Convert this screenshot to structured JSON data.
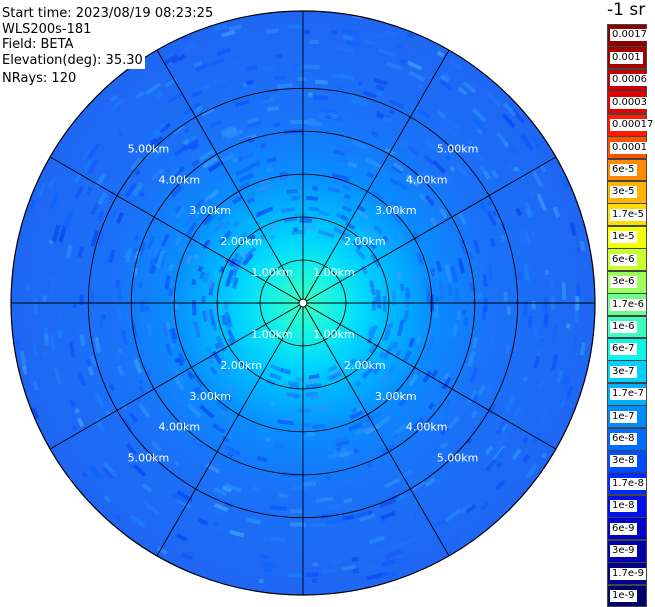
{
  "info": {
    "start_time": "Start time: 2023/08/19 08:23:25",
    "instrument": "WLS200s-181",
    "field": "Field: BETA",
    "elevation": "Elevation(deg): 35.30",
    "nrays": "NRays: 120"
  },
  "colorbar": {
    "unit": "-1 sr",
    "levels": [
      {
        "label": "0.0017",
        "color": "#8b0000"
      },
      {
        "label": "0.001",
        "color": "#a40000"
      },
      {
        "label": "0.0006",
        "color": "#c50000"
      },
      {
        "label": "0.0003",
        "color": "#e60000"
      },
      {
        "label": "0.00017",
        "color": "#ff1a00"
      },
      {
        "label": "0.0001",
        "color": "#ff5200"
      },
      {
        "label": "6e-5",
        "color": "#ff8a00"
      },
      {
        "label": "3e-5",
        "color": "#ffb400"
      },
      {
        "label": "1.7e-5",
        "color": "#ffdc00"
      },
      {
        "label": "1e-5",
        "color": "#f4ff00"
      },
      {
        "label": "6e-6",
        "color": "#c8ff2a"
      },
      {
        "label": "3e-6",
        "color": "#9bff5c"
      },
      {
        "label": "1.7e-6",
        "color": "#6cff8c"
      },
      {
        "label": "1e-6",
        "color": "#3cffbc"
      },
      {
        "label": "6e-7",
        "color": "#10f2e6"
      },
      {
        "label": "3e-7",
        "color": "#00d2ff"
      },
      {
        "label": "1.7e-7",
        "color": "#00b0ff"
      },
      {
        "label": "1e-7",
        "color": "#008cff"
      },
      {
        "label": "6e-8",
        "color": "#006cff"
      },
      {
        "label": "3e-8",
        "color": "#004cff"
      },
      {
        "label": "1.7e-8",
        "color": "#002cff"
      },
      {
        "label": "1e-8",
        "color": "#0010e6"
      },
      {
        "label": "6e-9",
        "color": "#0000c8"
      },
      {
        "label": "3e-9",
        "color": "#0000a8"
      },
      {
        "label": "1.7e-9",
        "color": "#000088"
      },
      {
        "label": "1e-9",
        "color": "#00006a"
      }
    ]
  },
  "plot": {
    "ring_labels": [
      "1.00km",
      "2.00km",
      "3.00km",
      "4.00km",
      "5.00km"
    ],
    "ring_ranges_km": [
      1,
      2,
      3,
      4,
      5
    ],
    "max_range_km": 6.8,
    "spoke_count": 12,
    "bg_color": "#1d66f7",
    "grid_color": "#000000"
  }
}
